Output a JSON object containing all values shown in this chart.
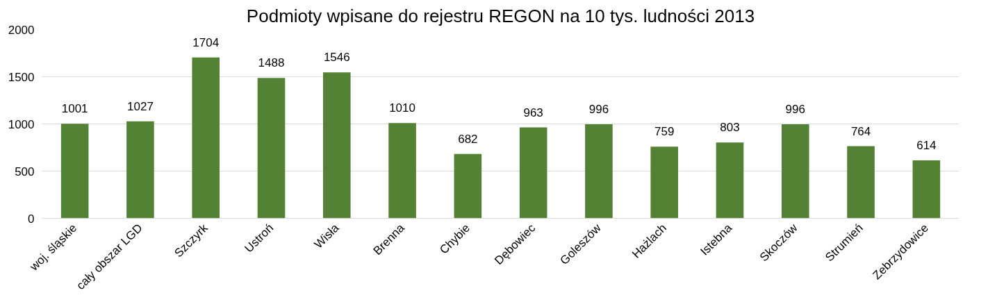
{
  "chart_data": {
    "type": "bar",
    "title": "Podmioty wpisane do rejestru REGON na 10 tys. ludności 2013",
    "categories": [
      "woj. śląskie",
      "cały obszar LGD",
      "Szczyrk",
      "Ustroń",
      "Wisła",
      "Brenna",
      "Chybie",
      "Dębowiec",
      "Goleszów",
      "Hażlach",
      "Istebna",
      "Skoczów",
      "Strumień",
      "Zebrzydowice"
    ],
    "values": [
      1001,
      1027,
      1704,
      1488,
      1546,
      1010,
      682,
      963,
      996,
      759,
      803,
      996,
      764,
      614
    ],
    "color": "#548235",
    "ylim": [
      0,
      2000
    ],
    "yticks": [
      0,
      500,
      1000,
      1500,
      2000
    ],
    "grid": "y",
    "data_labels": true
  }
}
